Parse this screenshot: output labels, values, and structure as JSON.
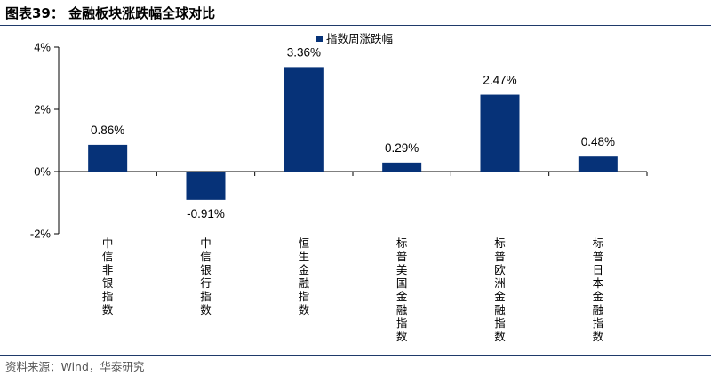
{
  "figure": {
    "title": "图表39：  金融板块涨跌幅全球对比",
    "source": "资料来源：Wind，华泰研究"
  },
  "colors": {
    "bar": "#063278",
    "axis": "#000000",
    "rule": "#1f3a6a"
  },
  "chart_data": {
    "type": "bar",
    "categories": [
      "中信非银指数",
      "中信银行指数",
      "恒生金融指数",
      "标普美国金融指数",
      "标普欧洲金融指数",
      "标普日本金融指数"
    ],
    "series": [
      {
        "name": "指数周涨跌幅",
        "values": [
          0.86,
          -0.91,
          3.36,
          0.29,
          2.47,
          0.48
        ]
      }
    ],
    "data_labels": [
      "0.86%",
      "-0.91%",
      "3.36%",
      "0.29%",
      "2.47%",
      "0.48%"
    ],
    "yticks": [
      -2,
      0,
      2,
      4
    ],
    "ytick_labels": [
      "-2%",
      "0%",
      "2%",
      "4%"
    ],
    "ylim": [
      -2,
      4
    ],
    "grid": false,
    "legend_position": "top-center"
  }
}
